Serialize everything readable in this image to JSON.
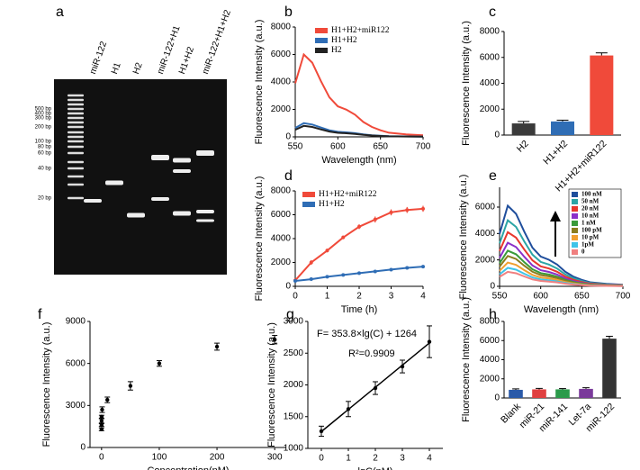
{
  "chart_data": [
    {
      "type": "gel",
      "panel": "a",
      "lanes": [
        "miR-122",
        "H1",
        "H2",
        "miR-122+H1",
        "H1+H2",
        "miR-122+H1+H2"
      ],
      "ladder_labels": [
        "500 bp",
        "400 bp",
        "300 bp",
        "200 bp",
        "100 bp",
        "80 bp",
        "60 bp",
        "40 bp",
        "20 bp"
      ]
    },
    {
      "type": "line",
      "panel": "b",
      "ylabel": "Fluorescence Intensity (a.u.)",
      "xlabel": "Wavelength (nm)",
      "x": [
        550,
        560,
        570,
        580,
        590,
        600,
        610,
        620,
        630,
        640,
        650,
        660,
        680,
        700
      ],
      "xlim": [
        550,
        700
      ],
      "xticks": [
        550,
        600,
        650,
        700
      ],
      "ylim": [
        0,
        8000
      ],
      "yticks": [
        0,
        2000,
        4000,
        6000,
        8000
      ],
      "legend": "upper right",
      "series": [
        {
          "name": "H1+H2+miR122",
          "color": "#f04a3a",
          "values": [
            3900,
            6000,
            5400,
            4080,
            2880,
            2220,
            1980,
            1620,
            1080,
            720,
            480,
            300,
            180,
            120
          ]
        },
        {
          "name": "H1+H2",
          "color": "#2f6db5",
          "values": [
            650,
            1000,
            900,
            680,
            480,
            370,
            330,
            270,
            180,
            120,
            80,
            50,
            30,
            20
          ]
        },
        {
          "name": "H2",
          "color": "#222222",
          "values": [
            520,
            800,
            720,
            544,
            384,
            296,
            264,
            216,
            144,
            96,
            64,
            40,
            24,
            16
          ]
        }
      ]
    },
    {
      "type": "bar",
      "panel": "c",
      "ylabel": "Fluorescence Intensity (a.u.)",
      "categories": [
        "H2",
        "H1+H2",
        "H1+H2+miR122"
      ],
      "values": [
        900,
        1050,
        6150
      ],
      "errors": [
        150,
        100,
        200
      ],
      "colors": [
        "#3a3a3a",
        "#2f6db5",
        "#f04a3a"
      ],
      "ylim": [
        0,
        8000
      ],
      "yticks": [
        0,
        2000,
        4000,
        6000,
        8000
      ]
    },
    {
      "type": "line",
      "panel": "d",
      "ylabel": "Fluorescence Intensity (a.u.)",
      "xlabel": "Time (h)",
      "x": [
        0,
        0.5,
        1,
        1.5,
        2,
        2.5,
        3,
        3.5,
        4
      ],
      "xlim": [
        0,
        4
      ],
      "xticks": [
        0,
        1,
        2,
        3,
        4
      ],
      "ylim": [
        0,
        8000
      ],
      "yticks": [
        0,
        2000,
        4000,
        6000,
        8000
      ],
      "legend": "upper left",
      "series": [
        {
          "name": "H1+H2+miR122",
          "color": "#f04a3a",
          "values": [
            500,
            2000,
            3000,
            4100,
            5000,
            5600,
            6200,
            6400,
            6500
          ],
          "errors": [
            150,
            200,
            150,
            150,
            200,
            250,
            250,
            250,
            250
          ]
        },
        {
          "name": "H1+H2",
          "color": "#2f6db5",
          "values": [
            450,
            600,
            800,
            950,
            1100,
            1250,
            1400,
            1550,
            1650
          ],
          "errors": [
            80,
            100,
            100,
            100,
            100,
            100,
            100,
            100,
            100
          ]
        }
      ]
    },
    {
      "type": "line",
      "panel": "e",
      "ylabel": "Fluorescence Intensity (a.u.)",
      "xlabel": "Wavelength (nm)",
      "x": [
        550,
        560,
        570,
        580,
        590,
        600,
        610,
        620,
        630,
        640,
        650,
        660,
        680,
        700
      ],
      "xlim": [
        550,
        700
      ],
      "xticks": [
        550,
        600,
        650,
        700
      ],
      "ylim": [
        0,
        7500
      ],
      "yticks": [
        0,
        2000,
        4000,
        6000
      ],
      "legend": "upper right box",
      "series": [
        {
          "name": "100 nM",
          "color": "#1f4e9c",
          "values": [
            3965,
            6100,
            5490,
            4148,
            2928,
            2257,
            2013,
            1647,
            1098,
            732,
            488,
            305,
            183,
            122
          ]
        },
        {
          "name": "50 nM",
          "color": "#2ca5a5",
          "values": [
            3250,
            5000,
            4500,
            3400,
            2400,
            1850,
            1650,
            1350,
            900,
            600,
            400,
            250,
            150,
            100
          ]
        },
        {
          "name": "20 nM",
          "color": "#e8372c",
          "values": [
            2665,
            4100,
            3690,
            2788,
            1968,
            1517,
            1353,
            1107,
            738,
            492,
            328,
            205,
            123,
            82
          ]
        },
        {
          "name": "10 nM",
          "color": "#8b2fc9",
          "values": [
            2145,
            3300,
            2970,
            2244,
            1584,
            1221,
            1089,
            891,
            594,
            396,
            264,
            165,
            99,
            66
          ]
        },
        {
          "name": "1 nM",
          "color": "#3a9a3a",
          "values": [
            1755,
            2700,
            2430,
            1836,
            1296,
            999,
            891,
            729,
            486,
            324,
            216,
            135,
            81,
            54
          ]
        },
        {
          "name": "100 pM",
          "color": "#8a7d1e",
          "values": [
            1495,
            2300,
            2070,
            1564,
            1104,
            851,
            759,
            621,
            414,
            276,
            184,
            115,
            69,
            46
          ]
        },
        {
          "name": "10 pM",
          "color": "#f0a030",
          "values": [
            1170,
            1800,
            1620,
            1224,
            864,
            666,
            594,
            486,
            324,
            216,
            144,
            90,
            54,
            36
          ]
        },
        {
          "name": "1pM",
          "color": "#3fc4e8",
          "values": [
            910,
            1400,
            1260,
            952,
            672,
            518,
            462,
            378,
            252,
            168,
            112,
            70,
            42,
            28
          ]
        },
        {
          "name": "0",
          "color": "#f08080",
          "values": [
            715,
            1100,
            990,
            748,
            528,
            407,
            363,
            297,
            198,
            132,
            88,
            55,
            33,
            22
          ]
        }
      ]
    },
    {
      "type": "scatter",
      "panel": "f",
      "ylabel": "Fluorescence Intensity (a.u.)",
      "xlabel": "Concentration(nM)",
      "xlim": [
        -20,
        320
      ],
      "xticks": [
        0,
        100,
        200,
        300
      ],
      "ylim": [
        0,
        9000
      ],
      "yticks": [
        0,
        3000,
        6000,
        9000
      ],
      "series": [
        {
          "color": "#000000",
          "x": [
            0,
            0.001,
            0.01,
            0.1,
            1,
            10,
            50,
            100,
            200,
            300
          ],
          "values": [
            1300,
            1600,
            1900,
            2200,
            2700,
            3400,
            4400,
            6000,
            7200,
            7700
          ],
          "errors": [
            100,
            100,
            150,
            100,
            200,
            200,
            300,
            200,
            250,
            300
          ]
        }
      ]
    },
    {
      "type": "scatter",
      "panel": "g",
      "ylabel": "Fluorescence Intensity (a.u.)",
      "xlabel": "lgC(pM)",
      "xlim": [
        -0.5,
        4.5
      ],
      "xticks": [
        0,
        1,
        2,
        3,
        4
      ],
      "ylim": [
        1000,
        3000
      ],
      "yticks": [
        1000,
        1500,
        2000,
        2500,
        3000
      ],
      "annotations": [
        "F= 353.8×lg(C) + 1264",
        "R²=0.9909"
      ],
      "fit": "linear",
      "series": [
        {
          "color": "#000000",
          "x": [
            0,
            1,
            2,
            3,
            4
          ],
          "values": [
            1270,
            1620,
            1950,
            2290,
            2680
          ],
          "errors": [
            80,
            120,
            100,
            100,
            250
          ]
        }
      ]
    },
    {
      "type": "bar",
      "panel": "h",
      "ylabel": "Fluorescence Intensity (a.u.)",
      "categories": [
        "Blank",
        "miR-21",
        "miR-141",
        "Let-7a",
        "miR-122"
      ],
      "values": [
        850,
        900,
        900,
        950,
        6200
      ],
      "errors": [
        100,
        100,
        80,
        120,
        250
      ],
      "colors": [
        "#2a5aa8",
        "#e04040",
        "#2a9a4a",
        "#7a3a9a",
        "#333333"
      ],
      "ylim": [
        0,
        8000
      ],
      "yticks": [
        0,
        2000,
        4000,
        6000,
        8000
      ]
    }
  ]
}
